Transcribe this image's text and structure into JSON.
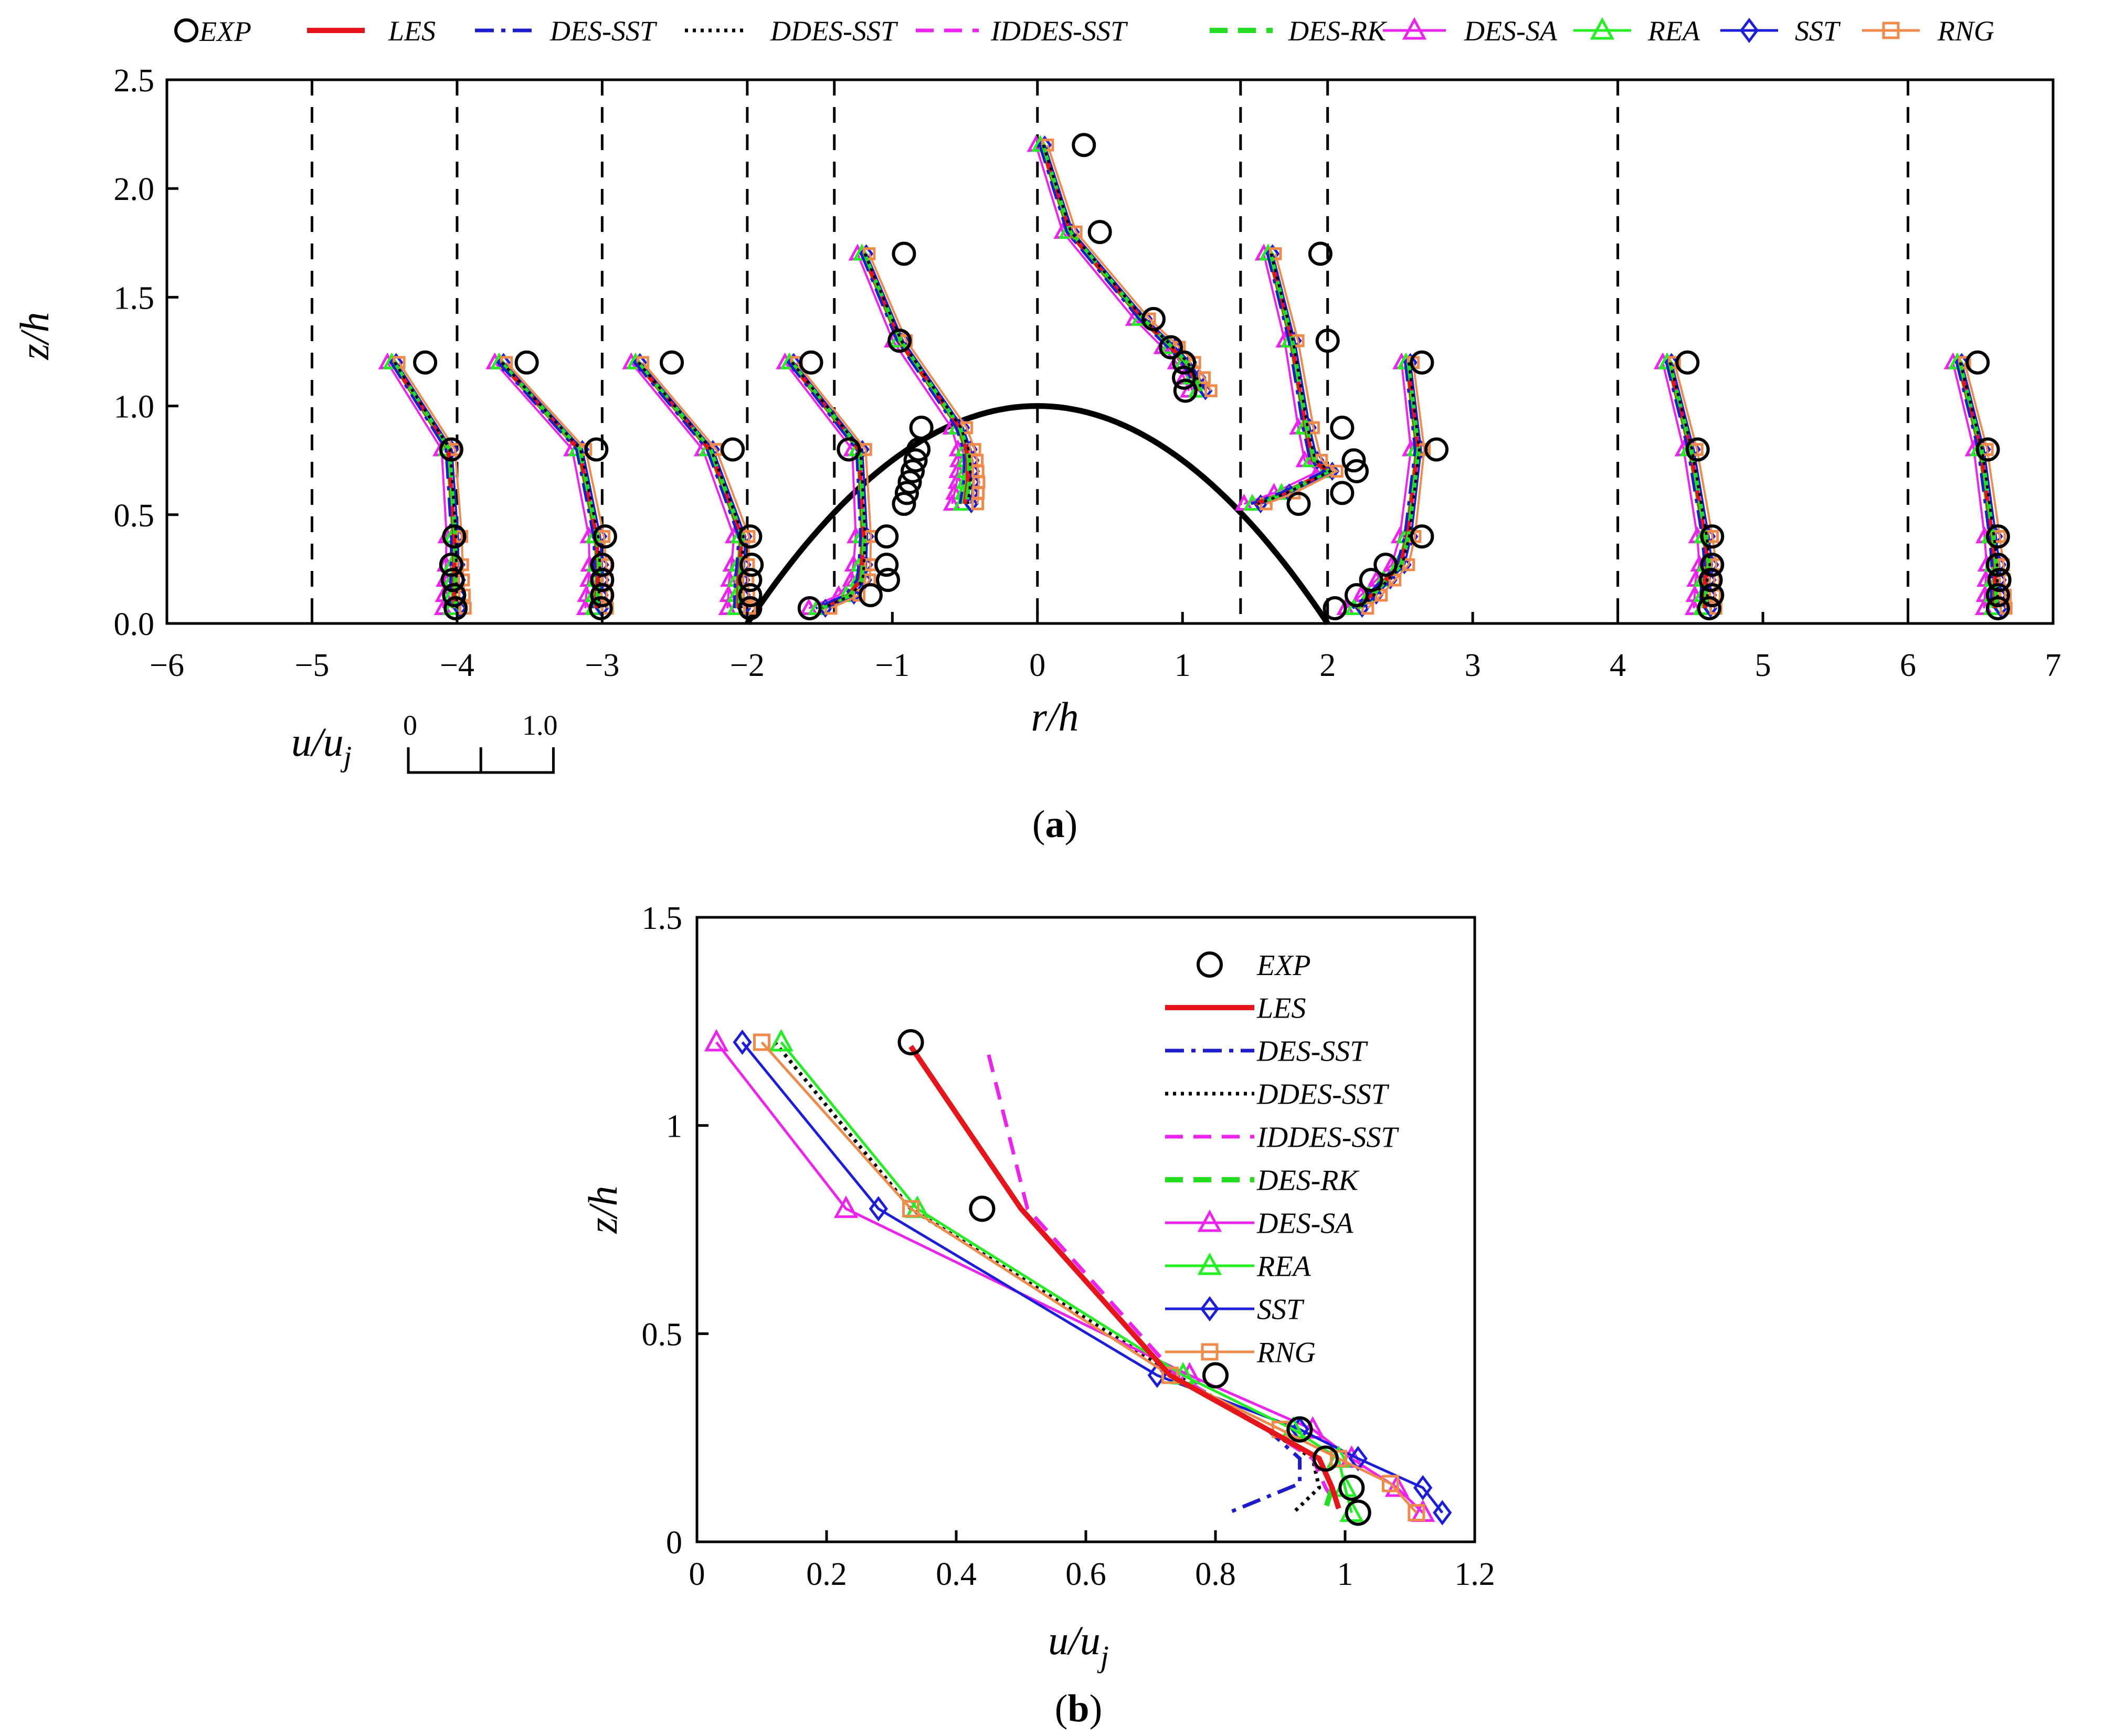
{
  "panels": [
    {
      "id": "a",
      "label_open": "(",
      "label_letter": "a",
      "label_close": ")"
    },
    {
      "id": "b",
      "label_open": "(",
      "label_letter": "b",
      "label_close": ")"
    }
  ],
  "series_styles": [
    {
      "name": "EXP",
      "color": "#000000",
      "marker": "circle",
      "line": "none"
    },
    {
      "name": "LES",
      "color": "#e8141c",
      "marker": "none",
      "line": "solid-thick"
    },
    {
      "name": "DES-SST",
      "color": "#1c1ccc",
      "marker": "none",
      "line": "dashdot"
    },
    {
      "name": "DDES-SST",
      "color": "#000000",
      "marker": "none",
      "line": "dotted"
    },
    {
      "name": "IDDES-SST",
      "color": "#ee22ee",
      "marker": "none",
      "line": "dashed"
    },
    {
      "name": "DES-RK",
      "color": "#22dd22",
      "marker": "none",
      "line": "dashed-thick"
    },
    {
      "name": "DES-SA",
      "color": "#ee22ee",
      "marker": "triangle",
      "line": "solid"
    },
    {
      "name": "REA",
      "color": "#22ee22",
      "marker": "triangle",
      "line": "solid"
    },
    {
      "name": "SST",
      "color": "#1c1cdd",
      "marker": "diamond",
      "line": "solid"
    },
    {
      "name": "RNG",
      "color": "#f08a4b",
      "marker": "square",
      "line": "solid"
    }
  ],
  "chart_data": [
    {
      "panel": "a",
      "type": "line",
      "title": "",
      "xlabel": "r/h",
      "ylabel": "z/h",
      "xlim": [
        -6,
        7
      ],
      "ylim": [
        0,
        2.5
      ],
      "xticks": [
        "−6",
        "−5",
        "−4",
        "−3",
        "−2",
        "−1",
        "0",
        "1",
        "2",
        "3",
        "4",
        "5",
        "6",
        "7"
      ],
      "xtick_values": [
        -6,
        -5,
        -4,
        -3,
        -2,
        -1,
        0,
        1,
        2,
        3,
        4,
        5,
        6,
        7
      ],
      "yticks": [
        "0.0",
        "0.5",
        "1.0",
        "1.5",
        "2.0",
        "2.5"
      ],
      "ytick_values": [
        0,
        0.5,
        1,
        1.5,
        2,
        2.5
      ],
      "legend": [
        "EXP",
        "LES",
        "DES-SST",
        "DDES-SST",
        "IDDES-SST",
        "DES-RK",
        "DES-SA",
        "REA",
        "SST",
        "RNG"
      ],
      "legend_position": "top",
      "hill": {
        "label": "hill profile",
        "x": [
          -2,
          -1.5,
          -1,
          -0.5,
          0,
          0.5,
          1,
          1.5,
          2
        ],
        "z": [
          0,
          0.4375,
          0.75,
          0.9375,
          1,
          0.9375,
          0.75,
          0.4375,
          0
        ]
      },
      "reference_lines_r": [
        -5,
        -4,
        -3,
        -2,
        -1.4,
        0,
        1.4,
        2,
        4,
        6
      ],
      "scale_bar": {
        "label": "u/u",
        "label_sub": "j",
        "start": "0",
        "end": "1.0",
        "length_units": 1.0
      },
      "profiles": [
        {
          "r0": -5,
          "z": [
            1.2,
            0.8,
            0.4,
            0.27,
            0.2,
            0.13,
            0.07
          ],
          "EXP": [
            0.78,
            0.96,
            0.98,
            0.96,
            0.97,
            0.98,
            0.99
          ],
          "SIM": [
            0.56,
            0.94,
            0.98,
            0.98,
            0.98,
            0.98,
            0.98
          ]
        },
        {
          "r0": -4,
          "z": [
            1.2,
            0.8,
            0.4,
            0.27,
            0.2,
            0.13,
            0.07
          ],
          "EXP": [
            0.48,
            0.96,
            1.02,
            1.0,
            1.0,
            1.0,
            0.99
          ],
          "SIM": [
            0.3,
            0.84,
            0.96,
            0.97,
            0.97,
            0.96,
            0.96
          ]
        },
        {
          "r0": -3,
          "z": [
            1.2,
            0.8,
            0.4,
            0.27,
            0.2,
            0.13,
            0.07
          ],
          "EXP": [
            0.48,
            0.9,
            1.02,
            1.03,
            1.02,
            1.02,
            1.02
          ],
          "SIM": [
            0.24,
            0.74,
            0.96,
            0.95,
            0.94,
            0.94,
            0.94
          ]
        },
        {
          "r0": -2,
          "z": [
            1.2,
            0.8,
            0.4,
            0.27,
            0.2,
            0.13,
            0.07
          ],
          "EXP": [
            0.44,
            0.7,
            0.96,
            0.96,
            0.97,
            0.85,
            0.43
          ],
          "SIM": [
            0.3,
            0.77,
            0.8,
            0.79,
            0.78,
            0.7,
            0.5
          ]
        },
        {
          "r0": -1.4,
          "z": [
            1.7,
            1.3,
            0.9,
            0.8,
            0.75,
            0.7,
            0.65,
            0.6,
            0.55
          ],
          "EXP": [
            0.48,
            0.45,
            0.6,
            0.58,
            0.56,
            0.54,
            0.52,
            0.5,
            0.48
          ],
          "SIM": [
            0.2,
            0.45,
            0.86,
            0.91,
            0.92,
            0.92,
            0.92,
            0.91,
            0.9
          ]
        },
        {
          "r0": 0,
          "z": [
            2.2,
            1.8,
            1.4,
            1.27,
            1.2,
            1.13,
            1.07
          ],
          "EXP": [
            0.32,
            0.43,
            0.8,
            0.92,
            1.01,
            1.01,
            1.02
          ],
          "SIM": [
            0.03,
            0.22,
            0.72,
            0.92,
            1.02,
            1.08,
            1.12
          ]
        },
        {
          "r0": 1.4,
          "z": [
            1.7,
            1.3,
            0.9,
            0.75,
            0.7,
            0.6,
            0.55
          ],
          "EXP": [
            0.55,
            0.6,
            0.7,
            0.78,
            0.8,
            0.7,
            0.4
          ],
          "SIM": [
            0.2,
            0.35,
            0.45,
            0.5,
            0.6,
            0.3,
            0.1
          ]
        },
        {
          "r0": 2,
          "z": [
            1.2,
            0.8,
            0.4,
            0.27,
            0.2,
            0.13,
            0.07
          ],
          "EXP": [
            0.65,
            0.75,
            0.65,
            0.4,
            0.3,
            0.2,
            0.05
          ],
          "SIM": [
            0.55,
            0.62,
            0.55,
            0.5,
            0.4,
            0.3,
            0.2
          ]
        },
        {
          "r0": 4,
          "z": [
            1.2,
            0.8,
            0.4,
            0.27,
            0.2,
            0.13,
            0.07
          ],
          "EXP": [
            0.48,
            0.55,
            0.65,
            0.65,
            0.64,
            0.65,
            0.63
          ],
          "SIM": [
            0.35,
            0.5,
            0.6,
            0.62,
            0.6,
            0.6,
            0.6
          ]
        },
        {
          "r0": 6,
          "z": [
            1.2,
            0.8,
            0.4,
            0.27,
            0.2,
            0.13,
            0.07
          ],
          "EXP": [
            0.48,
            0.55,
            0.62,
            0.62,
            0.63,
            0.62,
            0.62
          ],
          "SIM": [
            0.35,
            0.5,
            0.58,
            0.6,
            0.6,
            0.6,
            0.6
          ]
        }
      ]
    },
    {
      "panel": "b",
      "type": "line",
      "title": "",
      "xlabel": "u/u",
      "xlabel_sub": "j",
      "ylabel": "z/h",
      "xlim": [
        0,
        1.2
      ],
      "ylim": [
        0,
        1.5
      ],
      "xticks": [
        "0",
        "0.2",
        "0.4",
        "0.6",
        "0.8",
        "1",
        "1.2"
      ],
      "xtick_values": [
        0,
        0.2,
        0.4,
        0.6,
        0.8,
        1.0,
        1.2
      ],
      "yticks": [
        "0",
        "0.5",
        "1",
        "1.5"
      ],
      "ytick_values": [
        0,
        0.5,
        1.0,
        1.5
      ],
      "legend_position": "top-right",
      "series": [
        {
          "name": "EXP",
          "x": [
            0.33,
            0.44,
            0.8,
            0.93,
            0.97,
            1.01,
            1.02
          ],
          "y": [
            1.2,
            0.8,
            0.4,
            0.27,
            0.2,
            0.13,
            0.07
          ]
        },
        {
          "name": "LES",
          "x": [
            0.33,
            0.5,
            0.73,
            0.88,
            0.96,
            0.98,
            0.99
          ],
          "y": [
            1.19,
            0.8,
            0.4,
            0.27,
            0.2,
            0.13,
            0.08
          ]
        },
        {
          "name": "DES-SST",
          "x": [
            0.33,
            0.5,
            0.73,
            0.88,
            0.93,
            0.93,
            0.82
          ],
          "y": [
            1.19,
            0.8,
            0.4,
            0.27,
            0.2,
            0.14,
            0.07
          ]
        },
        {
          "name": "DDES-SST",
          "x": [
            0.12,
            0.33,
            0.74,
            0.88,
            0.95,
            0.96,
            0.92
          ],
          "y": [
            1.2,
            0.8,
            0.4,
            0.27,
            0.2,
            0.13,
            0.07
          ]
        },
        {
          "name": "IDDES-SST",
          "x": [
            0.45,
            0.51,
            0.74,
            0.88,
            0.95,
            0.97,
            0.99
          ],
          "y": [
            1.17,
            0.8,
            0.4,
            0.27,
            0.2,
            0.13,
            0.08
          ]
        },
        {
          "name": "DES-RK",
          "x": [
            0.33,
            0.5,
            0.73,
            0.88,
            0.96,
            0.98,
            0.97
          ],
          "y": [
            1.19,
            0.8,
            0.4,
            0.27,
            0.2,
            0.13,
            0.08
          ]
        },
        {
          "name": "DES-SA",
          "x": [
            0.03,
            0.23,
            0.76,
            0.95,
            1.01,
            1.08,
            1.12
          ],
          "y": [
            1.2,
            0.8,
            0.4,
            0.27,
            0.2,
            0.13,
            0.07
          ]
        },
        {
          "name": "REA",
          "x": [
            0.13,
            0.34,
            0.75,
            0.92,
            0.99,
            1.0,
            1.01
          ],
          "y": [
            1.2,
            0.8,
            0.4,
            0.27,
            0.2,
            0.13,
            0.07
          ]
        },
        {
          "name": "SST",
          "x": [
            0.07,
            0.28,
            0.71,
            0.93,
            1.02,
            1.12,
            1.15
          ],
          "y": [
            1.2,
            0.8,
            0.4,
            0.27,
            0.2,
            0.13,
            0.07
          ]
        },
        {
          "name": "RNG",
          "x": [
            0.1,
            0.33,
            0.73,
            0.9,
            0.99,
            1.07,
            1.11
          ],
          "y": [
            1.2,
            0.8,
            0.4,
            0.27,
            0.2,
            0.14,
            0.07
          ]
        }
      ]
    }
  ]
}
